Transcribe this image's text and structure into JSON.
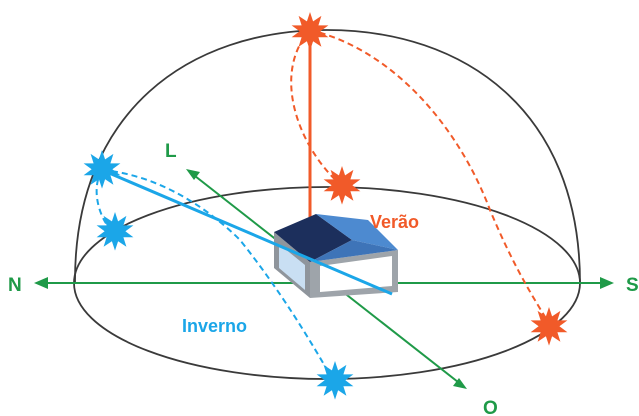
{
  "labels": {
    "north": "N",
    "south": "S",
    "east": "L",
    "west": "O",
    "summer": "Verão",
    "winter": "Inverno"
  },
  "colors": {
    "summer": "#f15a29",
    "winter": "#1ba6e8",
    "axis": "#1f9a48",
    "dome": "#3a3a3a",
    "roof_dark": "#1c2f5c",
    "roof_light": "#4d8ad0",
    "building_wall": "#8f959c",
    "building_window": "#c9dff3"
  },
  "icons": {
    "sun": "star-burst-icon",
    "axis_arrow": "arrowhead-icon"
  }
}
